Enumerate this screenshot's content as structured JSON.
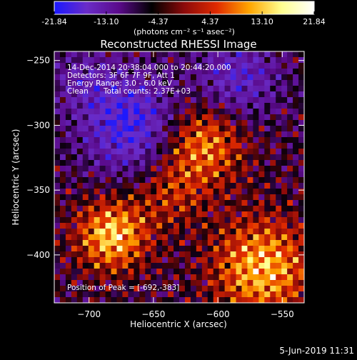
{
  "chart_data": {
    "type": "heatmap",
    "title": "Reconstructed RHESSI Image",
    "xlabel": "Heliocentric X (arcsec)",
    "ylabel": "Heliocentric Y (arcsec)",
    "xlim": [
      -727,
      -533
    ],
    "ylim": [
      -437,
      -243
    ],
    "x_ticks": [
      -700,
      -650,
      -600,
      -550
    ],
    "y_ticks": [
      -250,
      -300,
      -350,
      -400
    ],
    "colorbar": {
      "range": [
        -21.84,
        21.84
      ],
      "ticks": [
        "-21.84",
        "-13.10",
        "-4.37",
        "4.37",
        "13.10",
        "21.84"
      ],
      "unit_label": "(photons cm⁻² s⁻¹ asec⁻²)",
      "colors": [
        "#1a18ff",
        "#6a2cc8",
        "#5a0a8a",
        "#000000",
        "#8c0a0a",
        "#e02a00",
        "#ffa500",
        "#ffff90",
        "#ffffff"
      ]
    },
    "annotations": {
      "time_range": "14-Dec-2014 20:38:04.000 to 20:44:20.000",
      "detectors": "Detectors: 3F 6F 7F 9F, Att 1",
      "energy": "Energy Range: 3.0 - 6.0 keV",
      "method": "Clean",
      "counts": "Total counts: 2.37E+03",
      "peak": "Position of Peak = [-692,-383]"
    },
    "peak_position": [
      -692,
      -383
    ]
  },
  "footer": {
    "date_stamp": "5-Jun-2019 11:31"
  }
}
